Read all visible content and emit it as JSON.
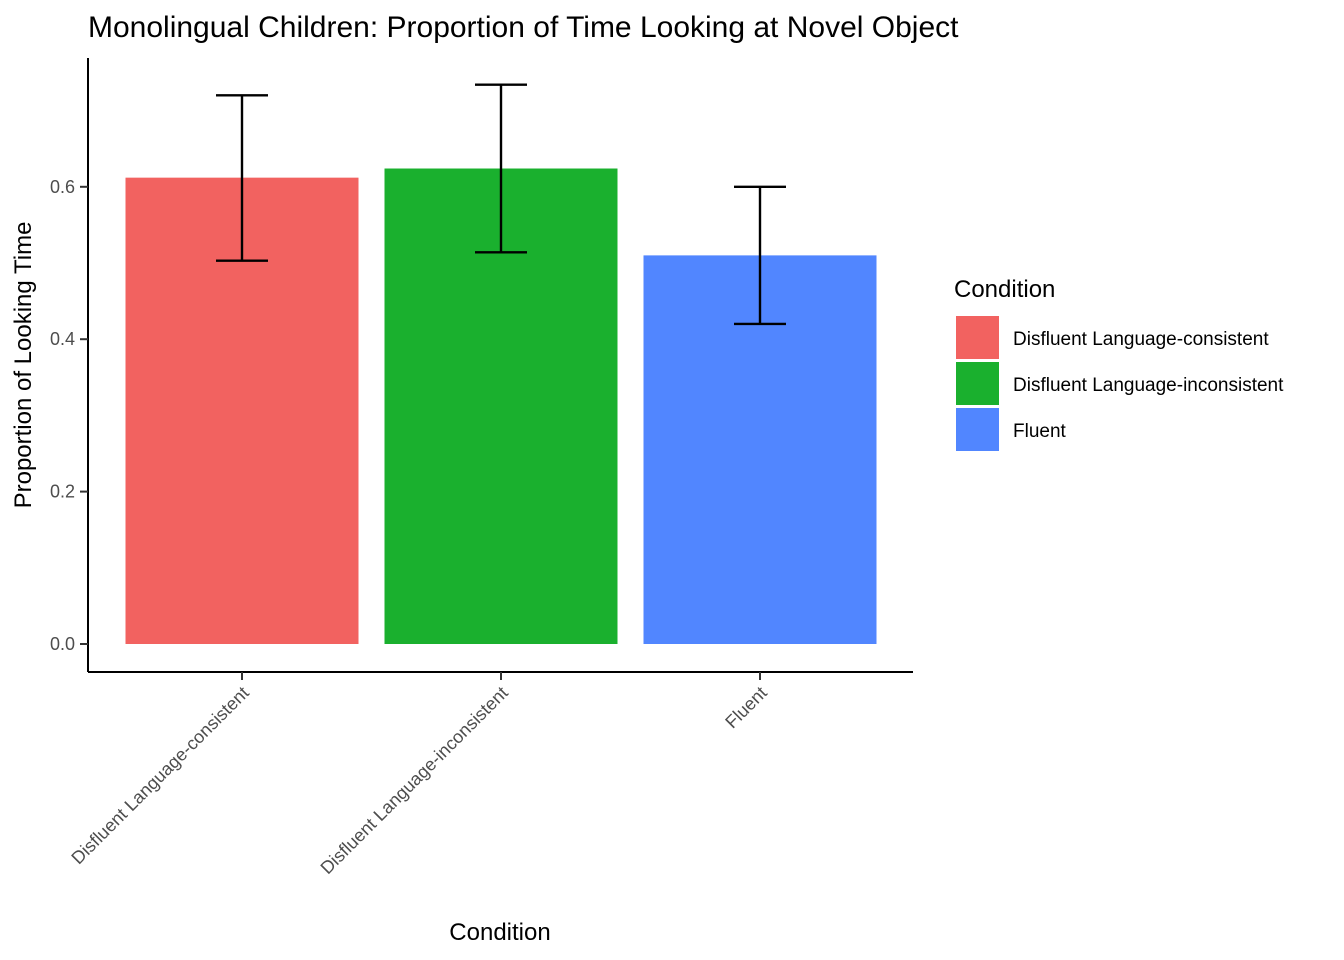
{
  "chart_data": {
    "type": "bar",
    "title": "Monolingual Children: Proportion of Time Looking at Novel Object",
    "xlabel": "Condition",
    "ylabel": "Proportion of Looking Time",
    "categories": [
      "Disfluent Language-consistent",
      "Disfluent Language-inconsistent",
      "Fluent"
    ],
    "values": [
      0.612,
      0.624,
      0.51
    ],
    "error_bars": [
      {
        "low": 0.503,
        "high": 0.72
      },
      {
        "low": 0.514,
        "high": 0.734
      },
      {
        "low": 0.42,
        "high": 0.6
      }
    ],
    "colors": [
      "#F26260",
      "#1AB02E",
      "#5186FF"
    ],
    "y_ticks": [
      "0.0",
      "0.2",
      "0.4",
      "0.6"
    ],
    "y_tick_values": [
      0,
      0.2,
      0.4,
      0.6
    ],
    "ylim": [
      0,
      0.77
    ],
    "grid": false,
    "legend": {
      "title": "Condition",
      "placement": "right",
      "entries": [
        "Disfluent Language-consistent",
        "Disfluent Language-inconsistent",
        "Fluent"
      ]
    }
  }
}
